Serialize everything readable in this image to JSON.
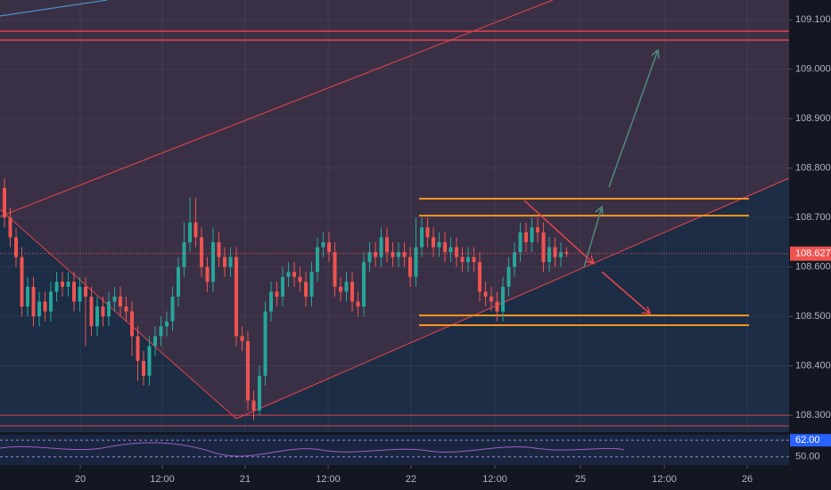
{
  "chart_data": {
    "type": "candlestick",
    "x": [
      0,
      1,
      2,
      3,
      4,
      5,
      6,
      7,
      8,
      9,
      10,
      11,
      12,
      13,
      14,
      15,
      16,
      17,
      18,
      19,
      20,
      21,
      22,
      23,
      24,
      25,
      26,
      27,
      28,
      29,
      30,
      31,
      32,
      33,
      34,
      35,
      36,
      37,
      38,
      39,
      40,
      41,
      42,
      43,
      44,
      45,
      46,
      47,
      48,
      49,
      50,
      51,
      52,
      53,
      54,
      55,
      56,
      57,
      58,
      59,
      60,
      61,
      62,
      63,
      64,
      65,
      66,
      67,
      68,
      69,
      70,
      71,
      72,
      73,
      74,
      75,
      76,
      77,
      78,
      79,
      80,
      81,
      82,
      83,
      84,
      85,
      86,
      87,
      88,
      89,
      90,
      91,
      92,
      93,
      94,
      95,
      96,
      97
    ],
    "open": [
      108.76,
      108.7,
      108.66,
      108.62,
      108.52,
      108.56,
      108.5,
      108.53,
      108.51,
      108.55,
      108.57,
      108.56,
      108.57,
      108.53,
      108.56,
      108.54,
      108.48,
      108.52,
      108.5,
      108.53,
      108.54,
      108.52,
      108.51,
      108.46,
      108.41,
      108.38,
      108.44,
      108.46,
      108.48,
      108.49,
      108.54,
      108.6,
      108.65,
      108.69,
      108.66,
      108.6,
      108.57,
      108.65,
      108.62,
      108.6,
      108.62,
      108.46,
      108.45,
      108.33,
      108.31,
      108.38,
      108.51,
      108.55,
      108.54,
      108.58,
      108.59,
      108.58,
      108.57,
      108.54,
      108.59,
      108.64,
      108.65,
      108.63,
      108.56,
      108.55,
      108.57,
      108.53,
      108.52,
      108.61,
      108.63,
      108.62,
      108.66,
      108.63,
      108.62,
      108.63,
      108.62,
      108.58,
      108.64,
      108.68,
      108.66,
      108.64,
      108.65,
      108.63,
      108.64,
      108.62,
      108.61,
      108.62,
      108.61,
      108.55,
      108.54,
      108.53,
      108.51,
      108.56,
      108.6,
      108.63,
      108.67,
      108.65,
      108.68,
      108.67,
      108.61,
      108.64,
      108.62,
      108.63
    ],
    "high": [
      108.78,
      108.72,
      108.68,
      108.64,
      108.58,
      108.58,
      108.55,
      108.55,
      108.57,
      108.59,
      108.59,
      108.59,
      108.59,
      108.58,
      108.58,
      108.56,
      108.54,
      108.54,
      108.55,
      108.56,
      108.56,
      108.54,
      108.53,
      108.48,
      108.43,
      108.46,
      108.48,
      108.5,
      108.51,
      108.56,
      108.62,
      108.69,
      108.74,
      108.74,
      108.68,
      108.62,
      108.68,
      108.67,
      108.64,
      108.64,
      108.64,
      108.48,
      108.47,
      108.35,
      108.4,
      108.53,
      108.57,
      108.57,
      108.6,
      108.61,
      108.61,
      108.6,
      108.59,
      108.61,
      108.66,
      108.67,
      108.67,
      108.65,
      108.58,
      108.59,
      108.59,
      108.55,
      108.63,
      108.65,
      108.65,
      108.68,
      108.68,
      108.65,
      108.65,
      108.65,
      108.64,
      108.7,
      108.7,
      108.7,
      108.68,
      108.67,
      108.67,
      108.66,
      108.66,
      108.64,
      108.64,
      108.64,
      108.63,
      108.57,
      108.56,
      108.55,
      108.58,
      108.62,
      108.65,
      108.69,
      108.69,
      108.7,
      108.7,
      108.69,
      108.66,
      108.66,
      108.65,
      108.64
    ],
    "low": [
      108.68,
      108.64,
      108.6,
      108.5,
      108.5,
      108.48,
      108.48,
      108.49,
      108.49,
      108.53,
      108.54,
      108.54,
      108.51,
      108.51,
      108.44,
      108.46,
      108.46,
      108.48,
      108.48,
      108.51,
      108.5,
      108.49,
      108.42,
      108.37,
      108.36,
      108.36,
      108.42,
      108.44,
      108.46,
      108.47,
      108.52,
      108.58,
      108.63,
      108.64,
      108.58,
      108.55,
      108.55,
      108.6,
      108.58,
      108.58,
      108.44,
      108.43,
      108.31,
      108.29,
      108.3,
      108.36,
      108.49,
      108.52,
      108.52,
      108.56,
      108.56,
      108.55,
      108.52,
      108.52,
      108.57,
      108.62,
      108.61,
      108.54,
      108.53,
      108.53,
      108.51,
      108.5,
      108.5,
      108.59,
      108.6,
      108.6,
      108.61,
      108.6,
      108.6,
      108.6,
      108.56,
      108.56,
      108.62,
      108.64,
      108.62,
      108.62,
      108.61,
      108.61,
      108.6,
      108.59,
      108.59,
      108.59,
      108.53,
      108.52,
      108.51,
      108.49,
      108.49,
      108.54,
      108.58,
      108.61,
      108.63,
      108.63,
      108.65,
      108.59,
      108.59,
      108.6,
      108.6,
      108.62
    ],
    "close": [
      108.7,
      108.66,
      108.62,
      108.52,
      108.56,
      108.5,
      108.53,
      108.51,
      108.55,
      108.57,
      108.56,
      108.57,
      108.53,
      108.56,
      108.54,
      108.48,
      108.52,
      108.5,
      108.53,
      108.54,
      108.52,
      108.51,
      108.46,
      108.41,
      108.38,
      108.44,
      108.46,
      108.48,
      108.49,
      108.54,
      108.6,
      108.65,
      108.69,
      108.66,
      108.6,
      108.57,
      108.65,
      108.62,
      108.6,
      108.62,
      108.46,
      108.45,
      108.33,
      108.31,
      108.38,
      108.51,
      108.55,
      108.54,
      108.58,
      108.59,
      108.58,
      108.57,
      108.54,
      108.59,
      108.64,
      108.65,
      108.63,
      108.56,
      108.55,
      108.57,
      108.53,
      108.52,
      108.61,
      108.63,
      108.62,
      108.66,
      108.63,
      108.62,
      108.63,
      108.62,
      108.58,
      108.64,
      108.68,
      108.66,
      108.64,
      108.65,
      108.63,
      108.64,
      108.62,
      108.61,
      108.62,
      108.61,
      108.55,
      108.54,
      108.53,
      108.51,
      108.56,
      108.6,
      108.63,
      108.67,
      108.65,
      108.68,
      108.67,
      108.61,
      108.64,
      108.62,
      108.63,
      108.627
    ],
    "up_color": "#26a69a",
    "down_color": "#ef5350",
    "last_price": 108.627,
    "xlim": [
      -0.77,
      135.38
    ],
    "xticks": [
      {
        "value": 13.08,
        "label": "20"
      },
      {
        "value": 27.23,
        "label": "12:00"
      },
      {
        "value": 41.54,
        "label": "21"
      },
      {
        "value": 55.85,
        "label": "12:00"
      },
      {
        "value": 70.15,
        "label": "22"
      },
      {
        "value": 84.62,
        "label": "12:00"
      },
      {
        "value": 99.38,
        "label": "25"
      },
      {
        "value": 113.85,
        "label": "12:00"
      },
      {
        "value": 128.15,
        "label": "26"
      }
    ],
    "ylim": [
      108.266,
      109.14
    ],
    "yticks": [
      {
        "value": 109.1,
        "label": "109.100"
      },
      {
        "value": 109.0,
        "label": "109.000"
      },
      {
        "value": 108.9,
        "label": "108.900"
      },
      {
        "value": 108.8,
        "label": "108.800"
      },
      {
        "value": 108.7,
        "label": "108.700"
      },
      {
        "value": 108.6,
        "label": "108.600"
      },
      {
        "value": 108.5,
        "label": "108.500"
      },
      {
        "value": 108.4,
        "label": "108.400"
      },
      {
        "value": 108.3,
        "label": "108.300"
      }
    ],
    "grid": true,
    "indicator": {
      "ylim": [
        44,
        66
      ],
      "yticks": [
        {
          "value": 62,
          "label": "62.00"
        },
        {
          "value": 50,
          "label": "50.00"
        }
      ]
    }
  }
}
